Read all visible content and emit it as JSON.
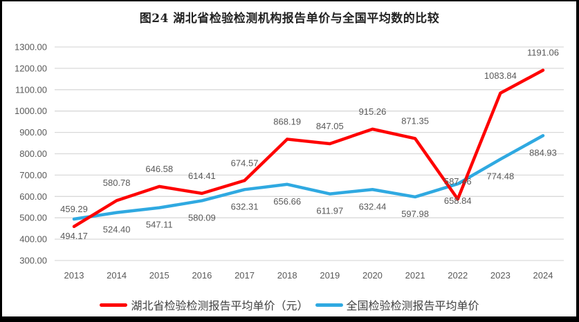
{
  "chart_data": {
    "type": "line",
    "title": "图24 湖北省检验检测机构报告单价与全国平均数的比较",
    "categories": [
      "2013",
      "2014",
      "2015",
      "2016",
      "2017",
      "2018",
      "2019",
      "2020",
      "2021",
      "2022",
      "2023",
      "2024"
    ],
    "series": [
      {
        "name": "湖北省检验检测报告平均单价（元）",
        "color": "#fe0101",
        "label_position": "above",
        "values": [
          459.29,
          580.78,
          646.58,
          614.41,
          674.57,
          868.19,
          847.05,
          915.26,
          871.35,
          587.46,
          1083.84,
          1191.06
        ],
        "labels": [
          "459.29",
          "580.78",
          "646.58",
          "614.41",
          "674.57",
          "868.19",
          "847.05",
          "915.26",
          "871.35",
          "587.46",
          "1083.84",
          "1191.06"
        ]
      },
      {
        "name": "全国检验检测报告平均单价",
        "color": "#2fa9e1",
        "label_position": "below",
        "values": [
          494.17,
          524.4,
          547.11,
          580.09,
          632.31,
          656.66,
          611.97,
          632.44,
          597.98,
          658.84,
          774.48,
          884.93
        ],
        "labels": [
          "494.17",
          "524.40",
          "547.11",
          "580.09",
          "632.31",
          "656.66",
          "611.97",
          "632.44",
          "597.98",
          "658.84",
          "774.48",
          "884.93"
        ]
      }
    ],
    "ylim": [
      300,
      1300
    ],
    "ytick_step": 100,
    "yticks": [
      "300.00",
      "400.00",
      "500.00",
      "600.00",
      "700.00",
      "800.00",
      "900.00",
      "1000.00",
      "1100.00",
      "1200.00",
      "1300.00"
    ],
    "grid": "horizontal-only",
    "legend_position": "bottom",
    "styles": {
      "grid_color": "#d9d9d9",
      "axis_text_color": "#595959",
      "data_label_color": "#595959",
      "title_color": "#222222",
      "legend_text_color": "#3f3f3f",
      "frame_border_color": "#000000",
      "background": "#ffffff"
    }
  }
}
